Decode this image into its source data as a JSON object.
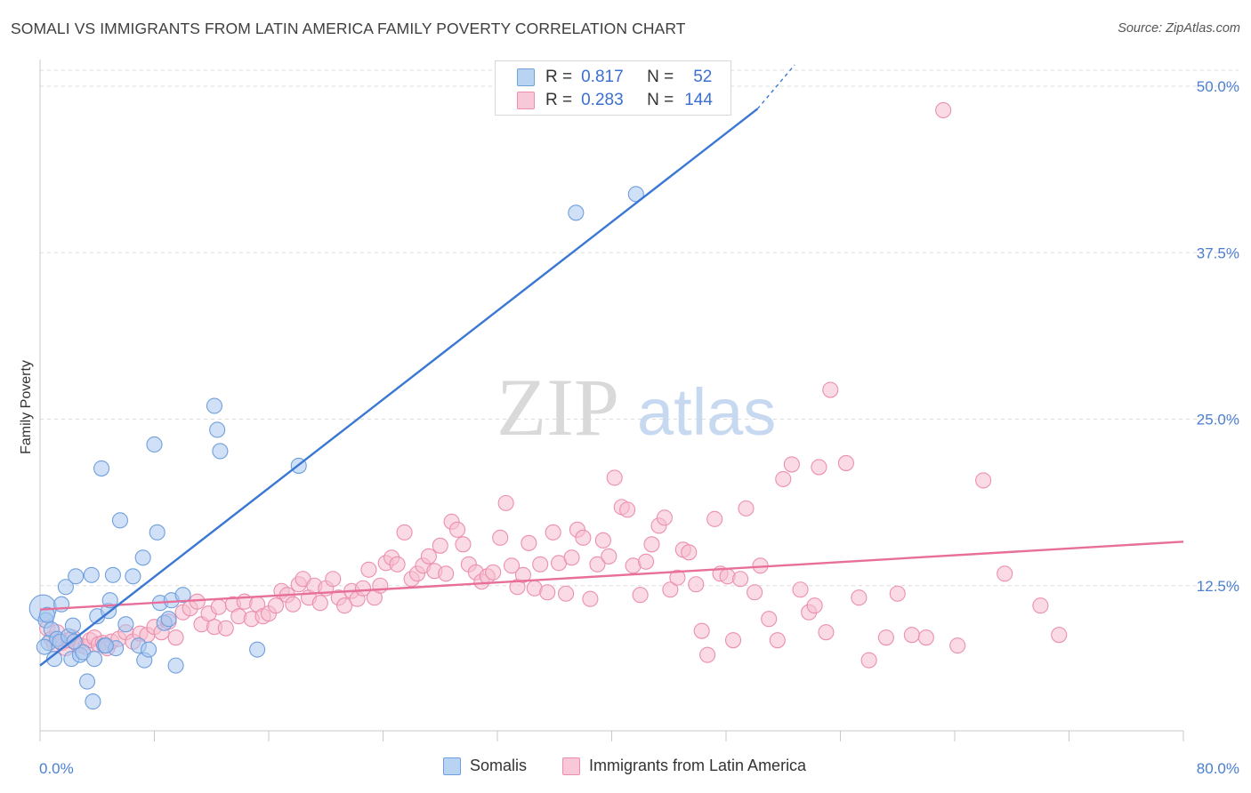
{
  "header": {
    "title": "SOMALI VS IMMIGRANTS FROM LATIN AMERICA FAMILY POVERTY CORRELATION CHART",
    "source": "Source: ZipAtlas.com"
  },
  "watermark": {
    "zip": "ZIP",
    "atlas": "atlas"
  },
  "legend_top": [
    {
      "r_label": "R =",
      "r_value": "0.817",
      "n_label": "N =",
      "n_value": "52"
    },
    {
      "r_label": "R =",
      "r_value": "0.283",
      "n_label": "N =",
      "n_value": "144"
    }
  ],
  "legend_bottom": [
    "Somalis",
    "Immigrants from Latin America"
  ],
  "colors": {
    "somali_fill": "#a9c8f0",
    "somali_stroke": "#6f9fdc",
    "somali_line": "#3a78d4",
    "latin_fill": "#f6bed0",
    "latin_stroke": "#ec8fad",
    "latin_line": "#e76f9a",
    "tick_text": "#4a7fd1",
    "grid": "#dcdcdc"
  },
  "chart_data": {
    "type": "scatter",
    "xlabel": "",
    "ylabel": "Family Poverty",
    "xlim": [
      0,
      80
    ],
    "ylim": [
      0,
      50
    ],
    "x_tick_labels": [
      "0.0%",
      "80.0%"
    ],
    "y_ticks": [
      12.5,
      25.0,
      37.5,
      50.0
    ],
    "y_tick_labels": [
      "12.5%",
      "25.0%",
      "37.5%",
      "50.0%"
    ],
    "grid": true,
    "legend_position": "top-center",
    "series": [
      {
        "name": "Somalis",
        "r": 0.817,
        "n": 52,
        "trend": {
          "x": [
            0,
            50.2
          ],
          "y": [
            6.5,
            48.3
          ],
          "dashed_to": [
            52.8,
            51.6
          ]
        },
        "points": [
          [
            0.2,
            10.8
          ],
          [
            0.4,
            9.9
          ],
          [
            0.5,
            10.3
          ],
          [
            0.6,
            8.2
          ],
          [
            0.8,
            9.2
          ],
          [
            1.0,
            7.0
          ],
          [
            1.2,
            8.5
          ],
          [
            1.4,
            8.3
          ],
          [
            1.5,
            11.1
          ],
          [
            1.8,
            12.4
          ],
          [
            2.0,
            8.7
          ],
          [
            2.2,
            7.0
          ],
          [
            2.3,
            9.5
          ],
          [
            2.5,
            13.2
          ],
          [
            2.8,
            7.3
          ],
          [
            3.0,
            7.5
          ],
          [
            3.3,
            5.3
          ],
          [
            3.6,
            13.3
          ],
          [
            3.7,
            3.8
          ],
          [
            3.8,
            7.0
          ],
          [
            4.0,
            10.2
          ],
          [
            4.3,
            21.3
          ],
          [
            4.5,
            8.0
          ],
          [
            4.8,
            10.6
          ],
          [
            4.9,
            11.4
          ],
          [
            5.1,
            13.3
          ],
          [
            5.3,
            7.8
          ],
          [
            5.6,
            17.4
          ],
          [
            6.0,
            9.6
          ],
          [
            6.5,
            13.2
          ],
          [
            6.9,
            8.0
          ],
          [
            7.2,
            14.6
          ],
          [
            7.3,
            6.9
          ],
          [
            7.6,
            7.7
          ],
          [
            8.0,
            23.1
          ],
          [
            8.2,
            16.5
          ],
          [
            8.4,
            11.2
          ],
          [
            8.7,
            9.7
          ],
          [
            9.0,
            10.0
          ],
          [
            9.2,
            11.4
          ],
          [
            9.5,
            6.5
          ],
          [
            10.0,
            11.8
          ],
          [
            12.2,
            26.0
          ],
          [
            12.4,
            24.2
          ],
          [
            12.6,
            22.6
          ],
          [
            15.2,
            7.7
          ],
          [
            18.1,
            21.5
          ],
          [
            37.5,
            40.5
          ],
          [
            41.7,
            41.9
          ],
          [
            0.3,
            7.9
          ],
          [
            2.4,
            8.3
          ],
          [
            4.6,
            8.0
          ]
        ]
      },
      {
        "name": "Immigrants from Latin America",
        "r": 0.283,
        "n": 144,
        "trend": {
          "x": [
            0,
            80
          ],
          "y": [
            10.7,
            15.8
          ]
        },
        "points": [
          [
            0.5,
            9.3
          ],
          [
            0.8,
            8.5
          ],
          [
            1.0,
            8.1
          ],
          [
            1.2,
            9.0
          ],
          [
            1.5,
            8.2
          ],
          [
            1.8,
            7.8
          ],
          [
            2.0,
            8.4
          ],
          [
            2.3,
            8.6
          ],
          [
            2.6,
            8.1
          ],
          [
            2.9,
            8.0
          ],
          [
            3.2,
            7.9
          ],
          [
            3.5,
            8.4
          ],
          [
            3.8,
            8.6
          ],
          [
            4.1,
            8.1
          ],
          [
            4.4,
            8.2
          ],
          [
            4.7,
            7.8
          ],
          [
            5.0,
            8.3
          ],
          [
            5.5,
            8.5
          ],
          [
            6.0,
            9.0
          ],
          [
            6.5,
            8.3
          ],
          [
            7.0,
            8.9
          ],
          [
            7.5,
            8.8
          ],
          [
            8.0,
            9.4
          ],
          [
            8.5,
            9.0
          ],
          [
            9.0,
            9.8
          ],
          [
            9.5,
            8.6
          ],
          [
            10.0,
            10.5
          ],
          [
            10.5,
            10.8
          ],
          [
            11.0,
            11.3
          ],
          [
            11.3,
            9.6
          ],
          [
            11.8,
            10.4
          ],
          [
            12.2,
            9.4
          ],
          [
            12.5,
            10.9
          ],
          [
            13.0,
            9.3
          ],
          [
            13.5,
            11.1
          ],
          [
            13.9,
            10.2
          ],
          [
            14.3,
            11.3
          ],
          [
            14.8,
            10.0
          ],
          [
            15.2,
            11.1
          ],
          [
            15.6,
            10.2
          ],
          [
            16.0,
            10.4
          ],
          [
            16.5,
            11.0
          ],
          [
            16.9,
            12.1
          ],
          [
            17.3,
            11.8
          ],
          [
            17.7,
            11.1
          ],
          [
            18.1,
            12.6
          ],
          [
            18.4,
            13.0
          ],
          [
            18.8,
            11.6
          ],
          [
            19.2,
            12.5
          ],
          [
            19.6,
            11.2
          ],
          [
            20.0,
            12.3
          ],
          [
            20.5,
            13.0
          ],
          [
            20.9,
            11.6
          ],
          [
            21.3,
            11.0
          ],
          [
            21.8,
            12.1
          ],
          [
            22.2,
            11.5
          ],
          [
            22.6,
            12.3
          ],
          [
            23.0,
            13.7
          ],
          [
            23.4,
            11.6
          ],
          [
            23.8,
            12.5
          ],
          [
            24.2,
            14.2
          ],
          [
            24.6,
            14.6
          ],
          [
            25.0,
            14.1
          ],
          [
            25.5,
            16.5
          ],
          [
            26.0,
            13.0
          ],
          [
            26.4,
            13.4
          ],
          [
            26.8,
            14.0
          ],
          [
            27.2,
            14.7
          ],
          [
            27.6,
            13.6
          ],
          [
            28.0,
            15.5
          ],
          [
            28.4,
            13.4
          ],
          [
            28.8,
            17.3
          ],
          [
            29.2,
            16.7
          ],
          [
            29.6,
            15.6
          ],
          [
            30.0,
            14.1
          ],
          [
            30.5,
            13.5
          ],
          [
            30.9,
            12.8
          ],
          [
            31.3,
            13.2
          ],
          [
            31.7,
            13.5
          ],
          [
            32.2,
            16.1
          ],
          [
            32.6,
            18.7
          ],
          [
            33.0,
            14.0
          ],
          [
            33.4,
            12.4
          ],
          [
            33.8,
            13.3
          ],
          [
            34.2,
            15.7
          ],
          [
            34.6,
            12.3
          ],
          [
            35.0,
            14.1
          ],
          [
            35.5,
            12.0
          ],
          [
            35.9,
            16.5
          ],
          [
            36.3,
            14.2
          ],
          [
            36.8,
            11.9
          ],
          [
            37.2,
            14.6
          ],
          [
            37.6,
            16.7
          ],
          [
            38.0,
            16.1
          ],
          [
            38.5,
            11.5
          ],
          [
            39.0,
            14.1
          ],
          [
            39.4,
            15.9
          ],
          [
            39.8,
            14.7
          ],
          [
            40.2,
            20.6
          ],
          [
            40.7,
            18.4
          ],
          [
            41.1,
            18.2
          ],
          [
            41.5,
            14.0
          ],
          [
            42.0,
            11.8
          ],
          [
            42.4,
            14.3
          ],
          [
            42.8,
            15.6
          ],
          [
            43.3,
            17.0
          ],
          [
            43.7,
            17.6
          ],
          [
            44.1,
            12.2
          ],
          [
            44.6,
            13.1
          ],
          [
            45.0,
            15.2
          ],
          [
            45.4,
            15.0
          ],
          [
            45.9,
            12.6
          ],
          [
            46.3,
            9.1
          ],
          [
            46.7,
            7.3
          ],
          [
            47.2,
            17.5
          ],
          [
            47.6,
            13.4
          ],
          [
            48.1,
            13.2
          ],
          [
            48.5,
            8.4
          ],
          [
            49.0,
            13.0
          ],
          [
            49.4,
            18.3
          ],
          [
            50.0,
            12.0
          ],
          [
            50.4,
            14.0
          ],
          [
            51.0,
            10.0
          ],
          [
            51.6,
            8.4
          ],
          [
            52.0,
            20.5
          ],
          [
            52.6,
            21.6
          ],
          [
            53.2,
            12.2
          ],
          [
            53.8,
            10.5
          ],
          [
            54.2,
            11.0
          ],
          [
            54.5,
            21.4
          ],
          [
            55.0,
            9.0
          ],
          [
            55.3,
            27.2
          ],
          [
            56.4,
            21.7
          ],
          [
            57.3,
            11.6
          ],
          [
            58.0,
            6.9
          ],
          [
            59.2,
            8.6
          ],
          [
            60.0,
            11.9
          ],
          [
            61.0,
            8.8
          ],
          [
            62.0,
            8.6
          ],
          [
            63.2,
            48.2
          ],
          [
            64.2,
            8.0
          ],
          [
            66.0,
            20.4
          ],
          [
            67.5,
            13.4
          ],
          [
            70.0,
            11.0
          ],
          [
            71.3,
            8.8
          ]
        ]
      }
    ]
  }
}
